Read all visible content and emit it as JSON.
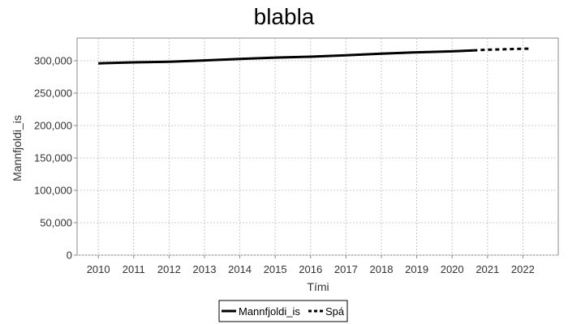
{
  "chart_data": {
    "type": "line",
    "title": "blabla",
    "xlabel": "Tími",
    "ylabel": "Mannfjoldi_is",
    "xlim": [
      2009.4,
      2023.0
    ],
    "ylim": [
      0,
      335000
    ],
    "x_ticks": [
      "2010",
      "2011",
      "2012",
      "2013",
      "2014",
      "2015",
      "2016",
      "2017",
      "2018",
      "2019",
      "2020",
      "2021",
      "2022"
    ],
    "y_ticks": [
      "0",
      "50,000",
      "100,000",
      "150,000",
      "200,000",
      "250,000",
      "300,000"
    ],
    "grid": true,
    "legend_position": "bottom-center",
    "series": [
      {
        "name": "Mannfjoldi_is",
        "style": "solid",
        "color": "#000000",
        "x": [
          2010.0,
          2011.0,
          2012.0,
          2013.0,
          2014.0,
          2015.0,
          2016.0,
          2017.0,
          2018.0,
          2019.0,
          2020.0,
          2020.6
        ],
        "y": [
          296000,
          297500,
          298500,
          300500,
          302800,
          304800,
          306200,
          308500,
          311000,
          313000,
          314500,
          316000
        ]
      },
      {
        "name": "Spá",
        "style": "dashed",
        "color": "#000000",
        "x": [
          2020.6,
          2021.0,
          2022.0,
          2022.25
        ],
        "y": [
          316000,
          317000,
          318500,
          318600
        ]
      }
    ]
  }
}
